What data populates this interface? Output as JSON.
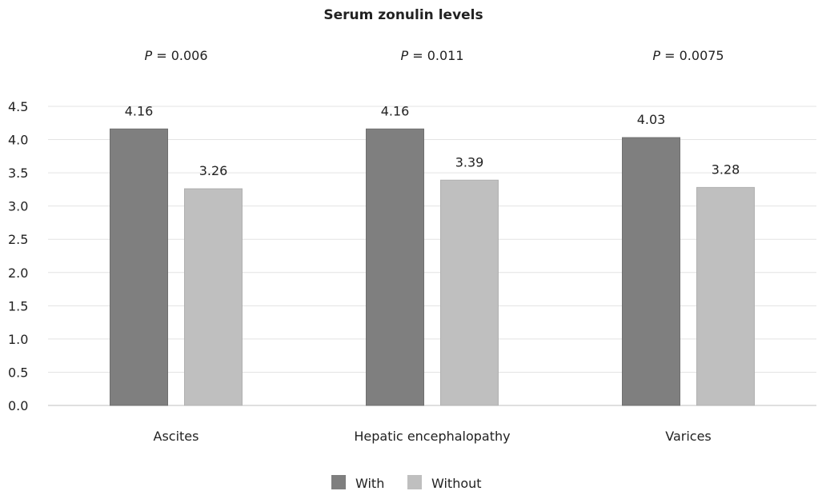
{
  "chart_data": {
    "type": "bar",
    "title": "Serum zonulin levels",
    "xlabel": "",
    "ylabel": "",
    "ylim": [
      0,
      4.5
    ],
    "yticks": [
      "0.0",
      "0.5",
      "1.0",
      "1.5",
      "2.0",
      "2.5",
      "3.0",
      "3.5",
      "4.0",
      "4.5"
    ],
    "grid": true,
    "legend_position": "bottom",
    "categories": [
      "Ascites",
      "Hepatic encephalopathy",
      "Varices"
    ],
    "series": [
      {
        "name": "With",
        "values": [
          4.16,
          4.16,
          4.03
        ],
        "labels": [
          "4.16",
          "4.16",
          "4.03"
        ],
        "color": "#7f7f7f"
      },
      {
        "name": "Without",
        "values": [
          3.26,
          3.39,
          3.28
        ],
        "labels": [
          "3.26",
          "3.39",
          "3.28"
        ],
        "color": "#bfbfbf"
      }
    ],
    "annotations": [
      {
        "prefix": "P",
        "text": " = 0.006"
      },
      {
        "prefix": "P",
        "text": " = 0.011"
      },
      {
        "prefix": "P",
        "text": " = 0.0075"
      }
    ]
  }
}
